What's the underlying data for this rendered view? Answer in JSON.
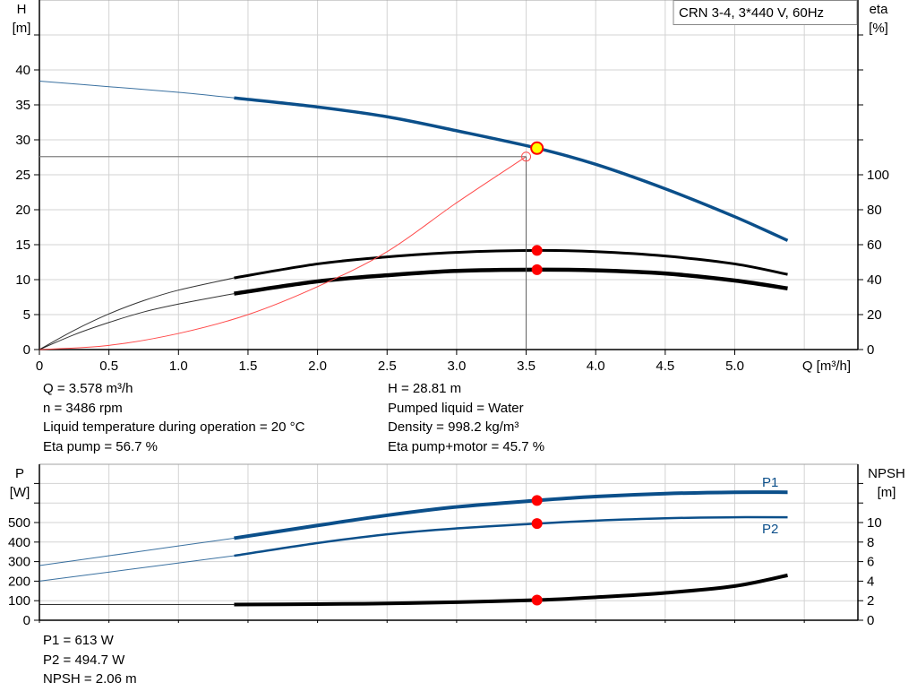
{
  "colors": {
    "pump_curve": "#0b4f8a",
    "efficiency": "#000000",
    "system_curve": "#ff4a4a",
    "duty_point": "#ff0000",
    "duty_point_fill": "#ffff00",
    "grid": "#d3d3d3"
  },
  "chart_data": [
    {
      "type": "line",
      "legend_box": "CRN 3-4, 3*440 V, 60Hz",
      "xlabel": "Q [m³/h]",
      "ylabel_left": [
        "H",
        "[m]"
      ],
      "ylabel_right": [
        "eta",
        "[%]"
      ],
      "x_ticks": [
        "0",
        "0.5",
        "1.0",
        "1.5",
        "2.0",
        "2.5",
        "3.0",
        "3.5",
        "4.0",
        "4.5",
        "5.0"
      ],
      "y_left_ticks": [
        "0",
        "5",
        "10",
        "15",
        "20",
        "25",
        "30",
        "35",
        "40"
      ],
      "y_right_ticks": [
        "0",
        "20",
        "40",
        "60",
        "80",
        "100"
      ],
      "xlim": [
        0,
        5.9
      ],
      "ylim_left": [
        0,
        50
      ],
      "ylim_right": [
        0,
        200
      ],
      "grid": true,
      "series": [
        {
          "axis": "left",
          "color": "#0b4f8a",
          "x": [
            0,
            0.5,
            1.0,
            1.4,
            2.0,
            2.5,
            3.0,
            3.578,
            4.0,
            4.5,
            5.0,
            5.38
          ],
          "y": [
            38.4,
            37.6,
            36.8,
            36.0,
            34.7,
            33.3,
            31.3,
            28.81,
            26.5,
            23.0,
            19.0,
            15.6
          ],
          "thin_until": 1.4
        },
        {
          "axis": "right",
          "color": "#000000",
          "x": [
            0,
            0.25,
            0.5,
            0.75,
            1.0,
            1.4,
            2.0,
            2.5,
            3.0,
            3.578,
            4.0,
            4.5,
            5.0,
            5.38
          ],
          "y": [
            0,
            11,
            20.4,
            28,
            34,
            41,
            49,
            53,
            55.6,
            56.7,
            56,
            53.5,
            49,
            43
          ],
          "thin_until": 1.4
        },
        {
          "axis": "right",
          "color": "#000000",
          "x": [
            0,
            0.25,
            0.5,
            0.75,
            1.0,
            1.4,
            2.0,
            2.5,
            3.0,
            3.578,
            4.0,
            4.5,
            5.0,
            5.38
          ],
          "y": [
            0,
            8.5,
            15.5,
            21.5,
            26,
            32,
            39,
            42.5,
            45,
            45.7,
            45.3,
            43.5,
            39.5,
            35
          ],
          "thin_until": 1.4
        },
        {
          "axis": "left",
          "color": "#ff4a4a",
          "x": [
            0,
            0.5,
            1.0,
            1.5,
            2.0,
            2.5,
            3.0,
            3.5
          ],
          "y": [
            0,
            0.6,
            2.3,
            5.0,
            9.0,
            14.0,
            21.0,
            27.6
          ]
        }
      ],
      "reference_point": {
        "x": 3.5,
        "y": 27.6
      },
      "duty_points": [
        {
          "axis": "left",
          "x": 3.578,
          "y": 28.81,
          "style": "yellow"
        },
        {
          "axis": "right",
          "x": 3.578,
          "y": 56.7
        },
        {
          "axis": "right",
          "x": 3.578,
          "y": 45.7
        }
      ]
    },
    {
      "type": "line",
      "ylabel_left": [
        "P",
        "[W]"
      ],
      "ylabel_right": [
        "NPSH",
        "[m]"
      ],
      "y_left_ticks": [
        "0",
        "100",
        "200",
        "300",
        "400",
        "500"
      ],
      "y_right_ticks": [
        "0",
        "2",
        "4",
        "6",
        "8",
        "10"
      ],
      "xlim": [
        0,
        5.9
      ],
      "ylim_left": [
        0,
        800
      ],
      "ylim_right": [
        0,
        16
      ],
      "grid": true,
      "series": [
        {
          "name": "P1",
          "axis": "left",
          "color": "#0b4f8a",
          "x": [
            0,
            0.7,
            1.4,
            2.0,
            2.5,
            3.0,
            3.578,
            4.0,
            4.5,
            5.0,
            5.38
          ],
          "y": [
            280,
            350,
            420,
            485,
            537,
            580,
            613,
            633,
            648,
            655,
            655
          ],
          "thin_until": 1.4,
          "width": 4
        },
        {
          "name": "P2",
          "axis": "left",
          "color": "#0b4f8a",
          "x": [
            0,
            0.7,
            1.4,
            2.0,
            2.5,
            3.0,
            3.578,
            4.0,
            4.5,
            5.0,
            5.38
          ],
          "y": [
            200,
            265,
            330,
            395,
            440,
            470,
            494.7,
            510,
            522,
            527,
            527
          ],
          "thin_until": 1.4,
          "width": 2.5
        },
        {
          "axis": "right",
          "color": "#000000",
          "x": [
            0,
            1.4,
            2.0,
            2.5,
            3.0,
            3.578,
            4.0,
            4.5,
            5.0,
            5.38
          ],
          "y": [
            1.6,
            1.6,
            1.65,
            1.72,
            1.85,
            2.06,
            2.35,
            2.8,
            3.5,
            4.6
          ],
          "thin_until": 1.4,
          "width": 4
        }
      ],
      "duty_points": [
        {
          "axis": "left",
          "x": 3.578,
          "y": 613
        },
        {
          "axis": "left",
          "x": 3.578,
          "y": 494.7
        },
        {
          "axis": "right",
          "x": 3.578,
          "y": 2.06
        }
      ]
    }
  ],
  "info_top_left": [
    "Q = 3.578 m³/h",
    "n = 3486 rpm",
    "Liquid temperature during operation = 20 °C",
    "Eta pump = 56.7 %"
  ],
  "info_top_right": [
    "H = 28.81 m",
    "Pumped liquid = Water",
    "Density = 998.2 kg/m³",
    "Eta pump+motor = 45.7 %"
  ],
  "info_bottom": [
    "P1 = 613 W",
    "P2 = 494.7 W",
    "NPSH = 2.06 m"
  ]
}
